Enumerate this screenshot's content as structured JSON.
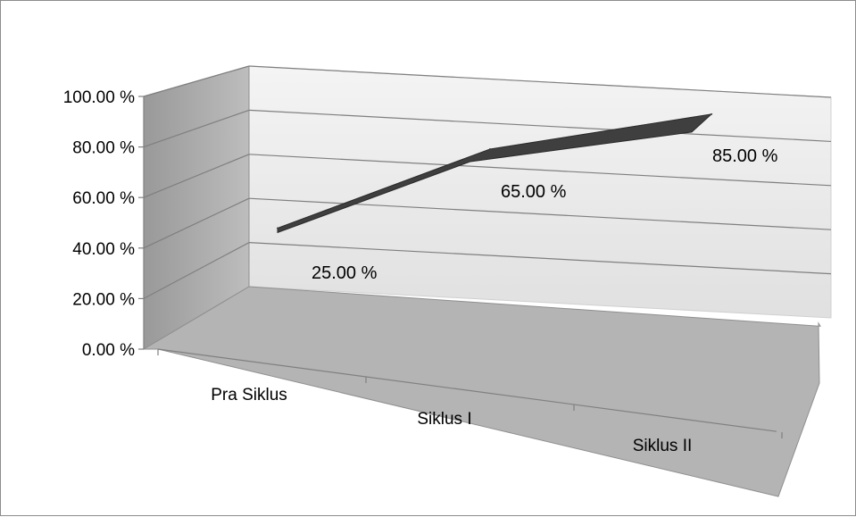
{
  "chart_data": {
    "type": "line",
    "style": "3d",
    "categories": [
      "Pra Siklus",
      "Siklus I",
      "Siklus II"
    ],
    "series": [
      {
        "values": [
          25,
          65,
          85
        ]
      }
    ],
    "data_labels": [
      "25.00 %",
      "65.00 %",
      "85.00 %"
    ],
    "y_tick_labels": [
      "0.00 %",
      "20.00 %",
      "40.00 %",
      "60.00 %",
      "80.00 %",
      "100.00 %"
    ],
    "ylim": [
      0,
      100
    ],
    "title": "",
    "xlabel": "",
    "ylabel": "",
    "grid": true,
    "legend": "none",
    "colors": {
      "series": "#3f3f3f",
      "back_wall": "#ececec",
      "side_wall": "#a6a6a6",
      "floor": "#b4b4b4",
      "gridline": "#7f7f7f"
    }
  }
}
